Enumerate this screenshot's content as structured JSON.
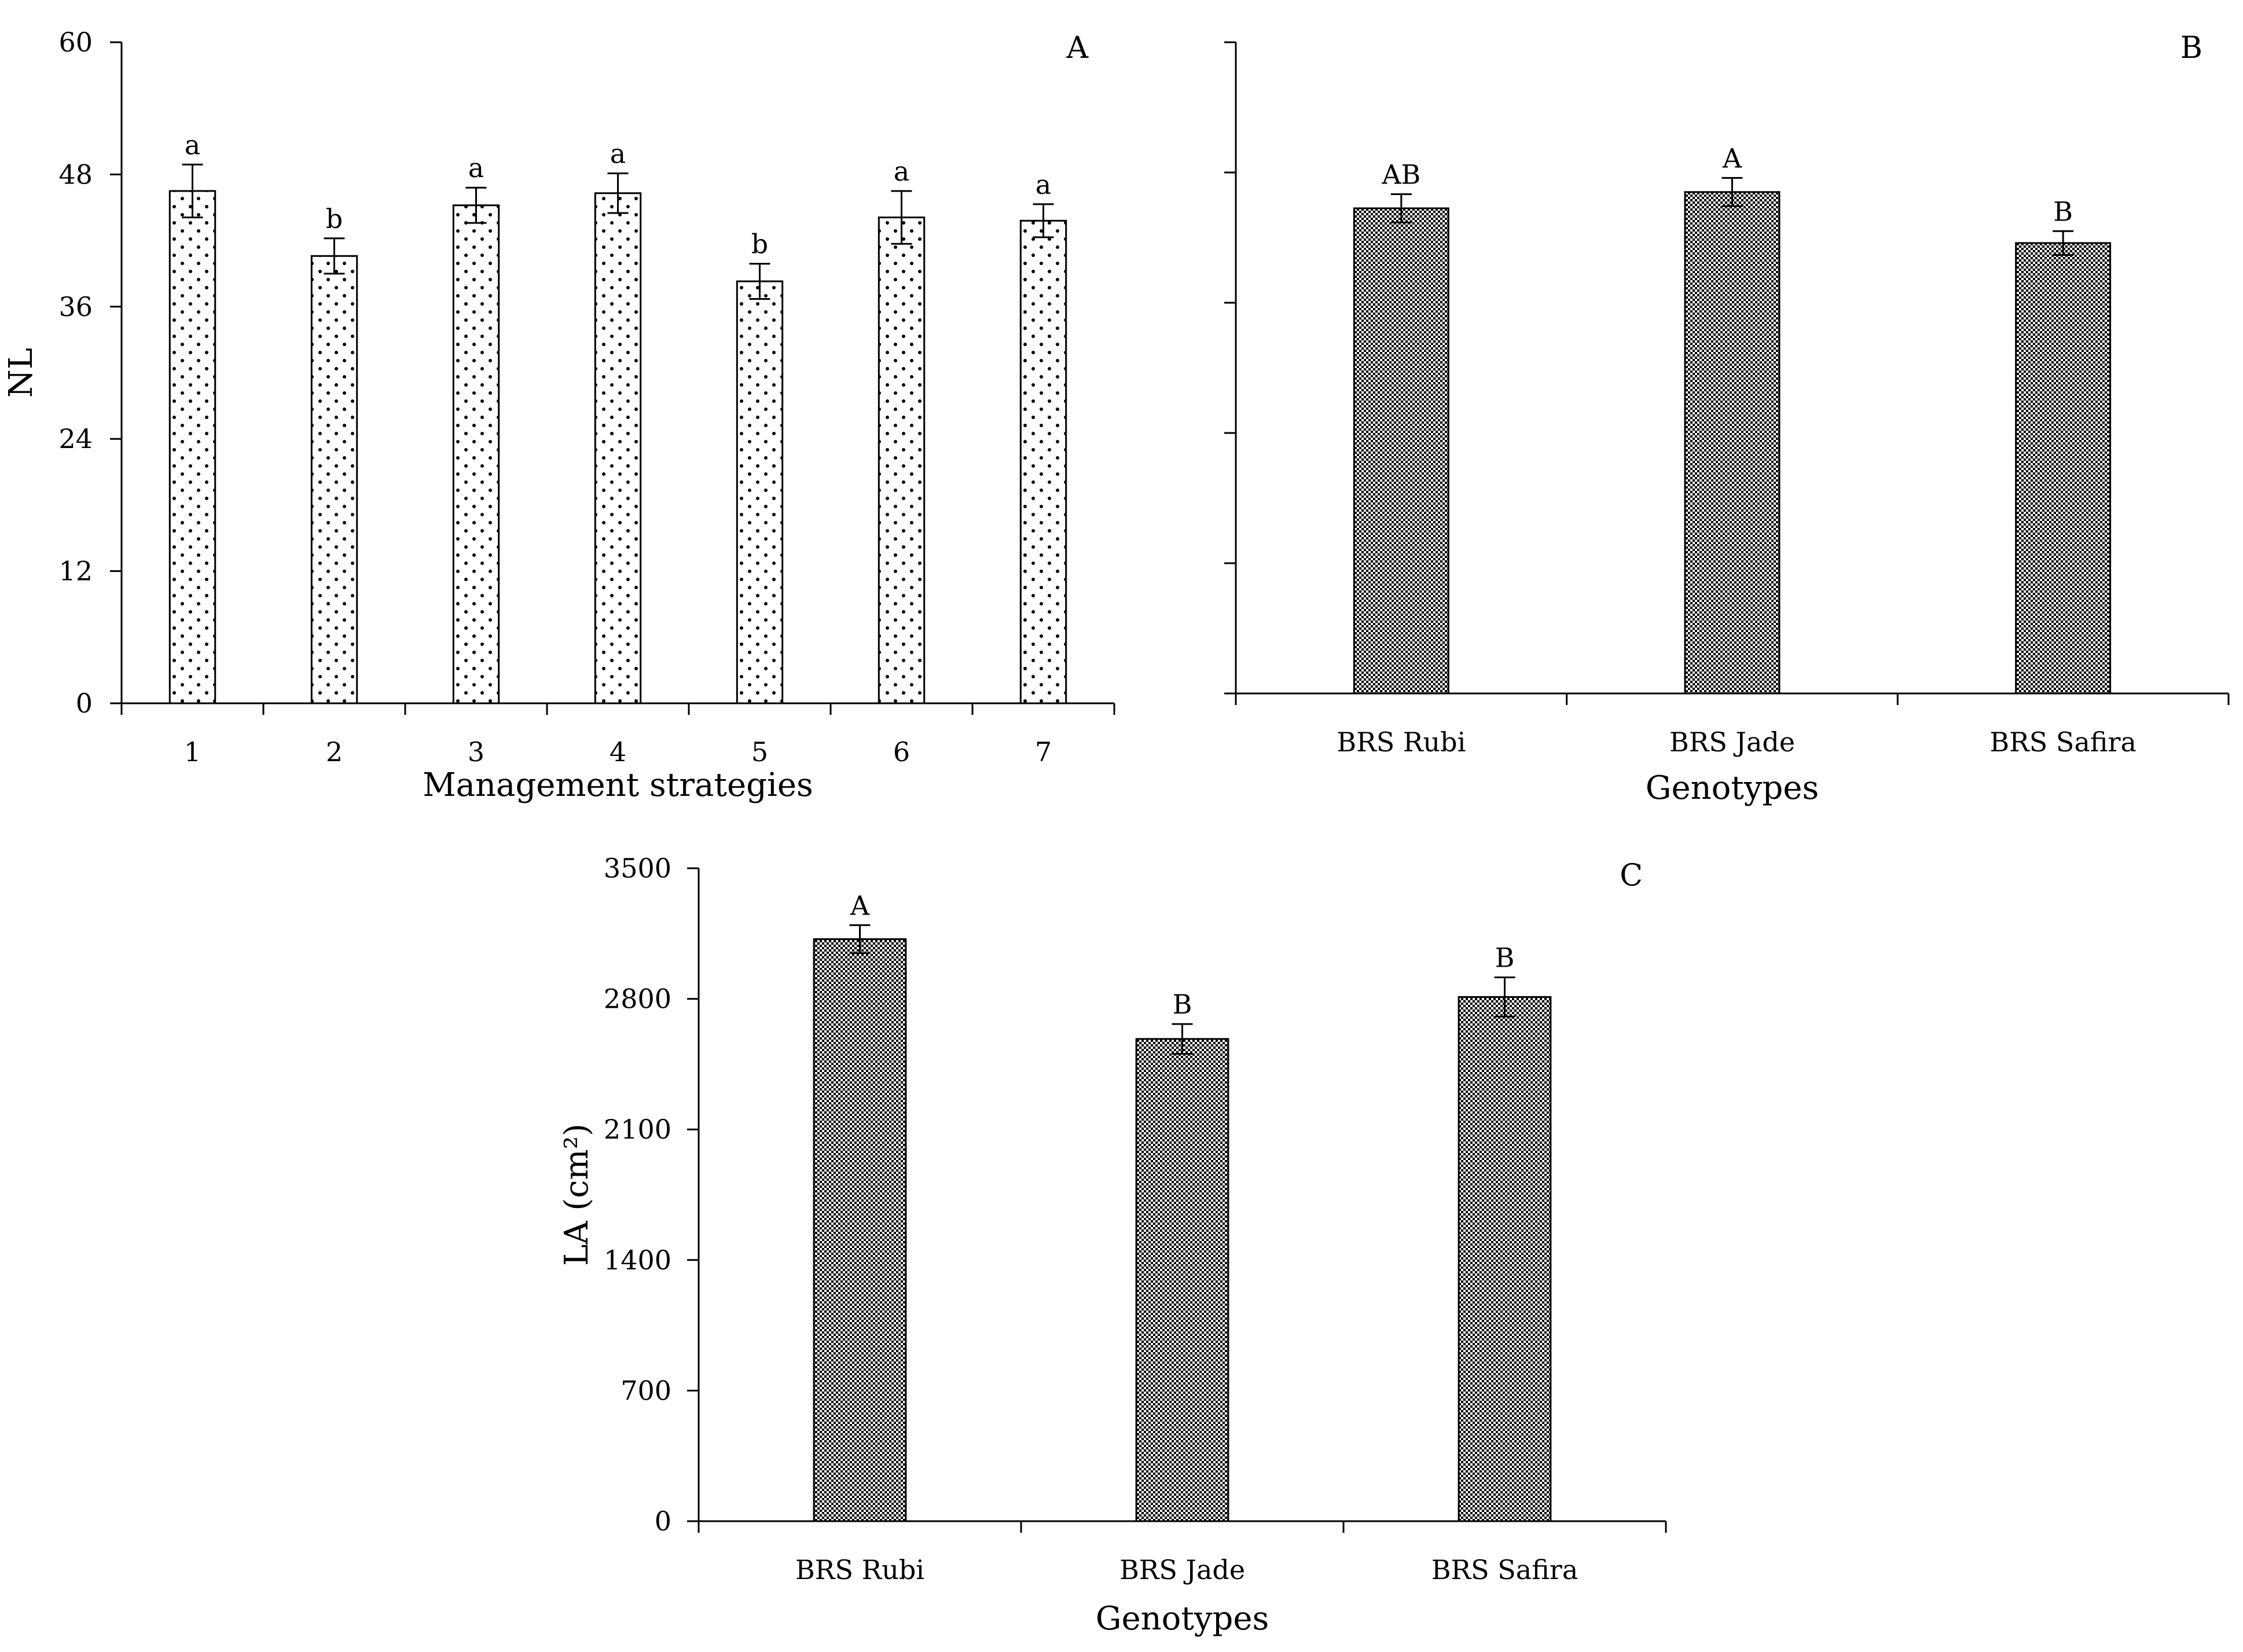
{
  "chart_data": [
    {
      "id": "A",
      "type": "bar",
      "panel_label": "A",
      "title": "",
      "xlabel": "Management strategies",
      "ylabel": "NL",
      "ylim": [
        0,
        60
      ],
      "yticks": [
        0,
        12,
        24,
        36,
        48,
        60
      ],
      "show_ytick_labels": true,
      "categories": [
        "1",
        "2",
        "3",
        "4",
        "5",
        "6",
        "7"
      ],
      "values": [
        46.5,
        40.6,
        45.2,
        46.3,
        38.3,
        44.1,
        43.8
      ],
      "errors": [
        2.4,
        1.6,
        1.6,
        1.8,
        1.6,
        2.4,
        1.5
      ],
      "labels": [
        "a",
        "b",
        "a",
        "a",
        "b",
        "a",
        "a"
      ],
      "pattern": "dots"
    },
    {
      "id": "B",
      "type": "bar",
      "panel_label": "B",
      "title": "",
      "xlabel": "Genotypes",
      "ylabel": "",
      "ylim": [
        0,
        60
      ],
      "yticks": [
        0,
        12,
        24,
        36,
        48,
        60
      ],
      "show_ytick_labels": false,
      "categories": [
        "BRS Rubi",
        "BRS Jade",
        "BRS Safira"
      ],
      "values": [
        44.7,
        46.2,
        41.5
      ],
      "errors": [
        1.3,
        1.3,
        1.1
      ],
      "labels": [
        "AB",
        "A",
        "B"
      ],
      "pattern": "checker"
    },
    {
      "id": "C",
      "type": "bar",
      "panel_label": "C",
      "title": "",
      "xlabel": "Genotypes",
      "ylabel": "LA (cm²)",
      "ylim": [
        0,
        3500
      ],
      "yticks": [
        0,
        700,
        1400,
        2100,
        2800,
        3500
      ],
      "show_ytick_labels": true,
      "categories": [
        "BRS Rubi",
        "BRS Jade",
        "BRS Safira"
      ],
      "values": [
        3120,
        2585,
        2810
      ],
      "errors": [
        75,
        80,
        105
      ],
      "labels": [
        "A",
        "B",
        "B"
      ],
      "pattern": "checker"
    }
  ]
}
